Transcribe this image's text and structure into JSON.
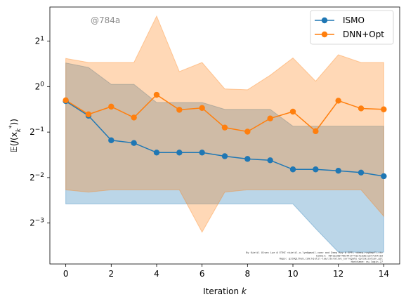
{
  "watermark": "@784a",
  "credit_lines": [
    "By Kjetil Olsen Lye @ ETHZ <kjetil.o.lye@gmail.com> and Deep Ray @ EPFL <deep.ray@epfl.ch>",
    "Commit: 784ae10074814417f41e7e33b1cb77c8fc03",
    "Repo: git@github.com:kjetil-lye/iterative_surrogate_optimization.git",
    "Hostname: eu-login-27"
  ],
  "chart_data": {
    "type": "line",
    "xlabel": "Iteration k",
    "ylabel": "E(J(x_k*))",
    "xlim": [
      -0.7,
      14.7
    ],
    "ylim": [
      -3.9,
      1.75
    ],
    "y_scale": "log2",
    "x_ticks": [
      0,
      2,
      4,
      6,
      8,
      10,
      12,
      14
    ],
    "y_ticks": [
      {
        "value": -3,
        "base": "2",
        "exp": "−3"
      },
      {
        "value": -2,
        "base": "2",
        "exp": "−2"
      },
      {
        "value": -1,
        "base": "2",
        "exp": "−1"
      },
      {
        "value": 0,
        "base": "2",
        "exp": "0"
      },
      {
        "value": 1,
        "base": "2",
        "exp": "1"
      }
    ],
    "grid": false,
    "legend_position": "top-right",
    "series": [
      {
        "name": "ISMO",
        "color": "#1f77b4",
        "x": [
          0,
          1,
          2,
          3,
          4,
          5,
          6,
          7,
          8,
          9,
          10,
          11,
          12,
          13,
          14
        ],
        "y": [
          -0.32,
          -0.64,
          -1.18,
          -1.24,
          -1.45,
          -1.45,
          -1.45,
          -1.53,
          -1.59,
          -1.62,
          -1.82,
          -1.82,
          -1.85,
          -1.89,
          -1.97
        ],
        "band_upper": [
          0.52,
          0.42,
          0.05,
          0.05,
          -0.35,
          -0.35,
          -0.35,
          -0.5,
          -0.5,
          -0.5,
          -0.87,
          -0.87,
          -0.87,
          -0.87,
          -0.87
        ],
        "band_lower": [
          -2.58,
          -2.58,
          -2.58,
          -2.58,
          -2.58,
          -2.58,
          -2.58,
          -2.58,
          -2.58,
          -2.58,
          -2.58,
          -3.12,
          -3.64,
          -3.64,
          -3.64
        ]
      },
      {
        "name": "DNN+Opt",
        "color": "#ff7f0e",
        "x": [
          0,
          1,
          2,
          3,
          4,
          5,
          6,
          7,
          8,
          9,
          10,
          11,
          12,
          13,
          14
        ],
        "y": [
          -0.3,
          -0.61,
          -0.44,
          -0.68,
          -0.18,
          -0.51,
          -0.47,
          -0.9,
          -0.99,
          -0.7,
          -0.55,
          -0.98,
          -0.31,
          -0.48,
          -0.5
        ],
        "band_upper": [
          0.62,
          0.53,
          0.53,
          0.53,
          1.55,
          0.33,
          0.53,
          -0.05,
          -0.07,
          0.25,
          0.63,
          0.12,
          0.7,
          0.53,
          0.53
        ],
        "band_lower": [
          -2.27,
          -2.32,
          -2.27,
          -2.27,
          -2.27,
          -2.27,
          -3.2,
          -2.32,
          -2.27,
          -2.27,
          -2.27,
          -2.27,
          -2.27,
          -2.27,
          -2.85
        ]
      }
    ]
  }
}
